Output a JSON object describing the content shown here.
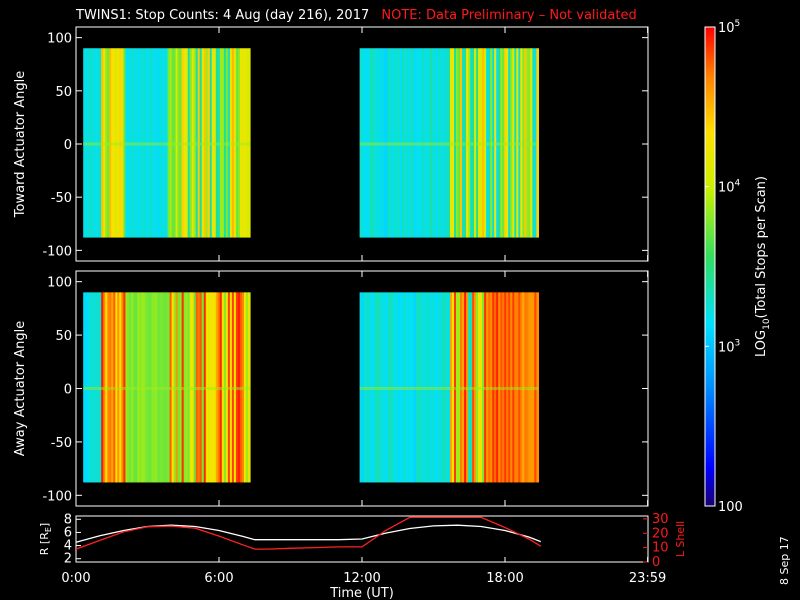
{
  "title": {
    "main": "TWINS1: Stop Counts:  4 Aug (day 216), 2017",
    "note": "NOTE: Data Preliminary – Not validated"
  },
  "colorbar": {
    "label": "LOG10(Total Stops per Scan)",
    "label_parts": [
      "LOG",
      "10",
      "(Total Stops per Scan)"
    ],
    "ticks": [
      {
        "value": 100,
        "base": "100",
        "exp": ""
      },
      {
        "value": 1000,
        "base": "10",
        "exp": "3"
      },
      {
        "value": 10000,
        "base": "10",
        "exp": "4"
      },
      {
        "value": 100000,
        "base": "10",
        "exp": "5"
      }
    ],
    "range": [
      100,
      100000
    ]
  },
  "x_axis": {
    "label": "Time (UT)",
    "ticks": [
      "0:00",
      "6:00",
      "12:00",
      "18:00",
      "23:59"
    ],
    "tick_hours": [
      0,
      6,
      12,
      18,
      23.983
    ],
    "range_hours": [
      0,
      24
    ]
  },
  "footer": {
    "date": "8 Sep 17"
  },
  "chart_data": [
    {
      "type": "heatmap",
      "title": "",
      "ylabel": "Toward Actuator Angle",
      "xlabel": "",
      "ylim": [
        -110,
        110
      ],
      "yticks": [
        "100",
        "50",
        "0",
        "-50",
        "-100"
      ],
      "ytick_values": [
        100,
        50,
        0,
        -50,
        -100
      ],
      "angle_range": [
        -88,
        90
      ],
      "data_intervals_hours": [
        [
          0.3,
          7.3
        ],
        [
          11.9,
          19.4
        ]
      ],
      "colorscale": "log",
      "value_range": [
        100,
        100000
      ],
      "dominant_levels": [
        "cyan",
        "green",
        "yellow",
        "orange"
      ]
    },
    {
      "type": "heatmap",
      "title": "",
      "ylabel": "Away Actuator Angle",
      "xlabel": "",
      "ylim": [
        -110,
        110
      ],
      "yticks": [
        "100",
        "50",
        "0",
        "-50",
        "-100"
      ],
      "ytick_values": [
        100,
        50,
        0,
        -50,
        -100
      ],
      "angle_range": [
        -88,
        90
      ],
      "data_intervals_hours": [
        [
          0.3,
          7.3
        ],
        [
          11.9,
          19.4
        ]
      ],
      "colorscale": "log",
      "value_range": [
        100,
        100000
      ],
      "dominant_levels": [
        "cyan",
        "yellow",
        "orange",
        "red"
      ]
    },
    {
      "type": "line",
      "ylabel_left": "R [RE]",
      "ylabel_left_parts": [
        "R [R",
        "E",
        "]"
      ],
      "ylabel_right": "L Shell",
      "left_ticks": [
        "8",
        "6",
        "4",
        "2"
      ],
      "left_tick_values": [
        8,
        6,
        4,
        2
      ],
      "right_ticks": [
        "30",
        "20",
        "10",
        "0"
      ],
      "right_tick_values": [
        30,
        20,
        10,
        0
      ],
      "left_range": [
        1.5,
        8.5
      ],
      "right_range": [
        0,
        32
      ],
      "series": [
        {
          "name": "R [RE]",
          "color": "#ffffff",
          "axis": "left",
          "x": [
            0,
            1,
            2,
            3,
            4,
            5,
            6,
            7,
            7.5,
            8,
            9,
            10,
            11,
            12,
            13,
            14,
            15,
            16,
            17,
            18,
            19,
            19.5
          ],
          "y": [
            4.5,
            5.5,
            6.3,
            6.9,
            7.1,
            6.9,
            6.3,
            5.4,
            4.9,
            4.9,
            4.9,
            4.9,
            4.9,
            5.0,
            5.9,
            6.6,
            7.0,
            7.1,
            6.9,
            6.3,
            5.3,
            4.6
          ]
        },
        {
          "name": "L Shell",
          "color": "#ff2020",
          "axis": "right",
          "x": [
            0,
            1,
            2,
            3,
            4,
            5,
            6,
            7,
            7.5,
            8,
            9,
            10,
            11,
            12,
            13,
            14,
            15,
            15.2,
            16,
            17,
            18,
            19,
            19.5
          ],
          "y": [
            9,
            15,
            21,
            24.5,
            25,
            23.5,
            18,
            12,
            9,
            9,
            9.5,
            10,
            10.5,
            10.5,
            22,
            31,
            31,
            31,
            31,
            31,
            24,
            16,
            11
          ]
        }
      ]
    }
  ]
}
